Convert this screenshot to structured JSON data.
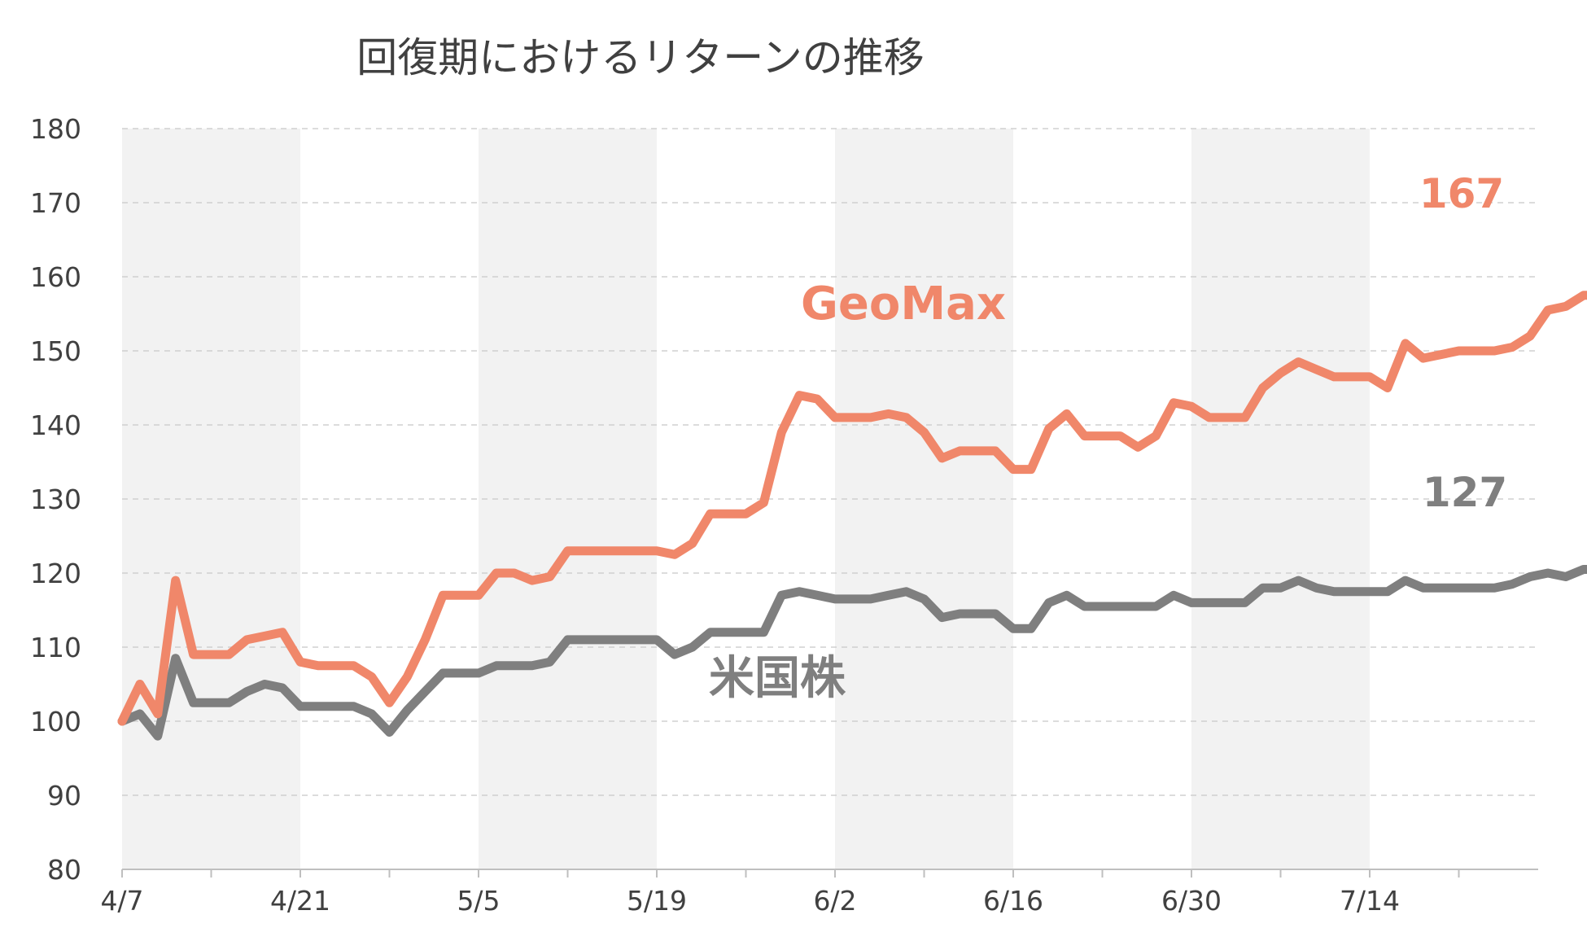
{
  "chart_data": {
    "type": "line",
    "title": "回復期におけるリターンの推移",
    "xlabel": "",
    "ylabel": "",
    "ylim": [
      80,
      180
    ],
    "y_ticks": [
      80,
      90,
      100,
      110,
      120,
      130,
      140,
      150,
      160,
      170,
      180
    ],
    "x_tick_labels": [
      "4/7",
      "4/21",
      "5/5",
      "5/19",
      "6/2",
      "6/16",
      "6/30",
      "7/14"
    ],
    "grid": true,
    "shaded_bands": true,
    "series": [
      {
        "name": "GeoMax",
        "color": "#f0876a",
        "end_label": "167",
        "values": [
          100,
          105,
          101,
          119,
          109,
          109,
          109,
          111,
          111.5,
          112,
          108,
          107.5,
          107.5,
          107.5,
          106,
          102.5,
          106,
          111,
          117,
          117,
          117,
          120,
          120,
          119,
          119.5,
          123,
          123,
          123,
          123,
          123,
          123,
          122.5,
          124,
          128,
          128,
          128,
          129.5,
          139,
          144,
          143.5,
          141,
          141,
          141,
          141.5,
          141,
          139,
          135.5,
          136.5,
          136.5,
          136.5,
          134,
          134,
          139.5,
          141.5,
          138.5,
          138.5,
          138.5,
          137,
          138.5,
          143,
          142.5,
          141,
          141,
          141,
          145,
          147,
          148.5,
          147.5,
          146.5,
          146.5,
          146.5,
          145,
          151,
          149,
          149.5,
          150,
          150,
          150,
          150.5,
          152,
          155.5,
          156,
          157.5,
          157.5,
          157.5,
          156.5,
          155.5,
          153.5,
          156,
          158.5,
          158.5,
          158.5,
          158,
          158,
          160.5,
          161,
          164,
          164,
          164,
          164,
          164.5,
          166,
          165.5,
          167
        ]
      },
      {
        "name": "米国株",
        "color": "#7f7f7f",
        "end_label": "127",
        "values": [
          100,
          101,
          98,
          108.5,
          102.5,
          102.5,
          102.5,
          104,
          105,
          104.5,
          102,
          102,
          102,
          102,
          101,
          98.5,
          101.5,
          104,
          106.5,
          106.5,
          106.5,
          107.5,
          107.5,
          107.5,
          108,
          111,
          111,
          111,
          111,
          111,
          111,
          109,
          110,
          112,
          112,
          112,
          112,
          117,
          117.5,
          117,
          116.5,
          116.5,
          116.5,
          117,
          117.5,
          116.5,
          114,
          114.5,
          114.5,
          114.5,
          112.5,
          112.5,
          116,
          117,
          115.5,
          115.5,
          115.5,
          115.5,
          115.5,
          117,
          116,
          116,
          116,
          116,
          118,
          118,
          119,
          118,
          117.5,
          117.5,
          117.5,
          117.5,
          119,
          118,
          118,
          118,
          118,
          118,
          118.5,
          119.5,
          120,
          119.5,
          120.5,
          120.5,
          120.5,
          121,
          121.5,
          121.5,
          121.5,
          123.5,
          123.5,
          123.5,
          123.5,
          123.5,
          124,
          124.5,
          124.5,
          125,
          125,
          125,
          125,
          126,
          126.5,
          127
        ]
      }
    ]
  }
}
